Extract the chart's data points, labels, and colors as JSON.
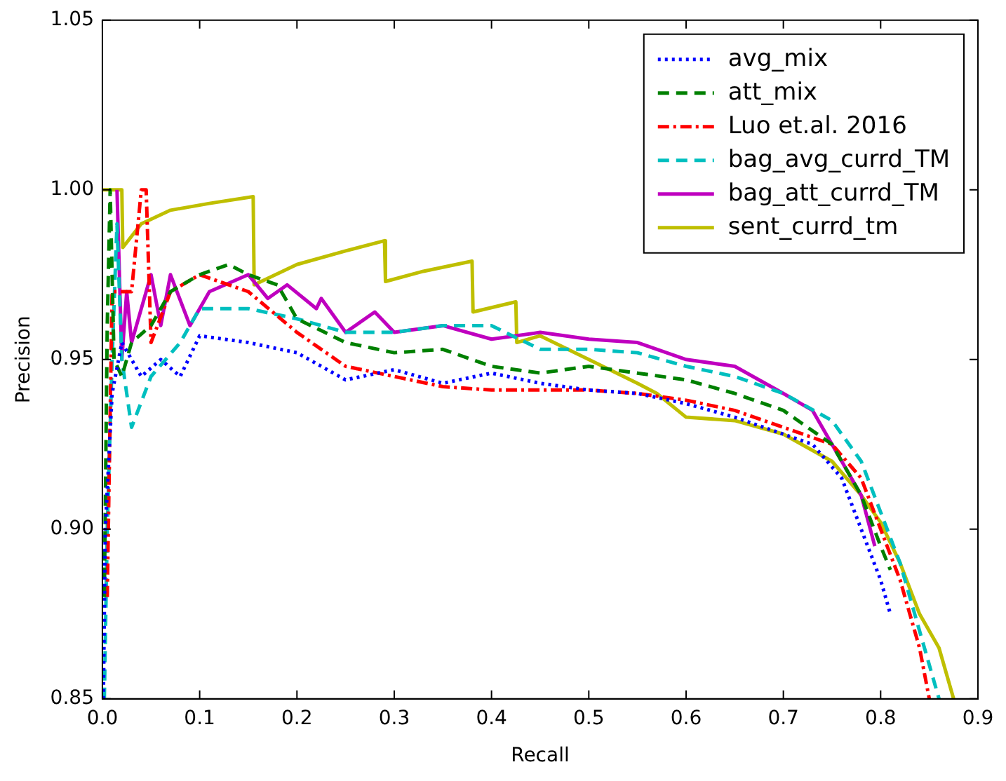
{
  "chart_data": {
    "type": "line",
    "xlabel": "Recall",
    "ylabel": "Precision",
    "legend": "top right",
    "grid": false,
    "marker": "none",
    "xlim": [
      0,
      0.9
    ],
    "ylim": [
      0.85,
      1.05
    ],
    "xticks": [
      {
        "value": 0,
        "label": "0.0"
      },
      {
        "value": 0.1,
        "label": "0.1"
      },
      {
        "value": 0.2,
        "label": "0.2"
      },
      {
        "value": 0.3,
        "label": "0.3"
      },
      {
        "value": 0.4,
        "label": "0.4"
      },
      {
        "value": 0.5,
        "label": "0.5"
      },
      {
        "value": 0.6,
        "label": "0.6"
      },
      {
        "value": 0.7,
        "label": "0.7"
      },
      {
        "value": 0.8,
        "label": "0.8"
      },
      {
        "value": 0.9,
        "label": "0.9"
      }
    ],
    "yticks": [
      {
        "value": 0.85,
        "label": "0.85"
      },
      {
        "value": 0.9,
        "label": "0.90"
      },
      {
        "value": 0.95,
        "label": "0.95"
      },
      {
        "value": 1.0,
        "label": "1.00"
      },
      {
        "value": 1.05,
        "label": "1.05"
      }
    ],
    "series": [
      {
        "name": "avg_mix",
        "color": "#0000ff",
        "line_style": "dotted",
        "x": [
          0.001,
          0.003,
          0.01,
          0.02,
          0.04,
          0.06,
          0.08,
          0.1,
          0.15,
          0.2,
          0.25,
          0.3,
          0.35,
          0.4,
          0.45,
          0.5,
          0.55,
          0.6,
          0.65,
          0.7,
          0.73,
          0.76,
          0.78,
          0.8,
          0.81
        ],
        "values": [
          0.85,
          0.9,
          0.94,
          0.955,
          0.945,
          0.95,
          0.945,
          0.957,
          0.955,
          0.952,
          0.944,
          0.947,
          0.943,
          0.946,
          0.943,
          0.941,
          0.94,
          0.937,
          0.933,
          0.928,
          0.925,
          0.915,
          0.9,
          0.885,
          0.875
        ]
      },
      {
        "name": "att_mix",
        "color": "#008000",
        "line_style": "dashed",
        "x": [
          0.002,
          0.005,
          0.008,
          0.012,
          0.02,
          0.03,
          0.05,
          0.07,
          0.1,
          0.13,
          0.15,
          0.18,
          0.2,
          0.25,
          0.3,
          0.35,
          0.4,
          0.45,
          0.5,
          0.55,
          0.6,
          0.65,
          0.7,
          0.75,
          0.78,
          0.8,
          0.81
        ],
        "values": [
          0.88,
          0.96,
          1.0,
          0.95,
          0.945,
          0.955,
          0.96,
          0.97,
          0.975,
          0.978,
          0.975,
          0.972,
          0.962,
          0.955,
          0.952,
          0.953,
          0.948,
          0.946,
          0.948,
          0.946,
          0.944,
          0.94,
          0.935,
          0.925,
          0.91,
          0.895,
          0.888
        ]
      },
      {
        "name": "Luo et.al. 2016",
        "color": "#ff0000",
        "line_style": "dashdot",
        "x": [
          0.005,
          0.01,
          0.02,
          0.03,
          0.04,
          0.045,
          0.05,
          0.07,
          0.1,
          0.15,
          0.2,
          0.25,
          0.3,
          0.35,
          0.4,
          0.5,
          0.55,
          0.6,
          0.65,
          0.7,
          0.75,
          0.78,
          0.8,
          0.82,
          0.84,
          0.85
        ],
        "values": [
          0.88,
          0.97,
          0.97,
          0.97,
          1.0,
          1.0,
          0.955,
          0.97,
          0.975,
          0.97,
          0.958,
          0.948,
          0.945,
          0.942,
          0.941,
          0.941,
          0.94,
          0.938,
          0.935,
          0.93,
          0.925,
          0.915,
          0.9,
          0.885,
          0.865,
          0.85
        ]
      },
      {
        "name": "bag_avg_currd_TM",
        "color": "#00bfbf",
        "line_style": "dashed",
        "x": [
          0.002,
          0.005,
          0.01,
          0.015,
          0.02,
          0.03,
          0.05,
          0.08,
          0.1,
          0.15,
          0.2,
          0.25,
          0.3,
          0.35,
          0.4,
          0.45,
          0.5,
          0.55,
          0.6,
          0.65,
          0.7,
          0.75,
          0.78,
          0.8,
          0.82,
          0.84,
          0.86
        ],
        "values": [
          0.85,
          0.9,
          0.95,
          0.99,
          0.95,
          0.93,
          0.945,
          0.955,
          0.965,
          0.965,
          0.962,
          0.958,
          0.958,
          0.96,
          0.96,
          0.953,
          0.953,
          0.952,
          0.948,
          0.945,
          0.94,
          0.932,
          0.92,
          0.905,
          0.89,
          0.87,
          0.85
        ]
      },
      {
        "name": "bag_att_currd_TM",
        "color": "#bf00bf",
        "line_style": "solid",
        "x": [
          0.015,
          0.02,
          0.025,
          0.03,
          0.05,
          0.06,
          0.07,
          0.09,
          0.11,
          0.15,
          0.17,
          0.19,
          0.22,
          0.225,
          0.25,
          0.28,
          0.3,
          0.35,
          0.4,
          0.45,
          0.5,
          0.55,
          0.6,
          0.65,
          0.7,
          0.73,
          0.76,
          0.78,
          0.794
        ],
        "values": [
          1.0,
          0.95,
          0.97,
          0.955,
          0.975,
          0.96,
          0.975,
          0.96,
          0.97,
          0.975,
          0.968,
          0.972,
          0.965,
          0.968,
          0.958,
          0.964,
          0.958,
          0.96,
          0.956,
          0.958,
          0.956,
          0.955,
          0.95,
          0.948,
          0.94,
          0.935,
          0.92,
          0.91,
          0.895
        ]
      },
      {
        "name": "sent_currd_tm",
        "color": "#bfbf00",
        "line_style": "solid",
        "x": [
          0,
          0.02,
          0.021,
          0.04,
          0.07,
          0.11,
          0.155,
          0.156,
          0.2,
          0.25,
          0.29,
          0.291,
          0.33,
          0.38,
          0.381,
          0.425,
          0.426,
          0.45,
          0.5,
          0.55,
          0.57,
          0.6,
          0.65,
          0.7,
          0.75,
          0.78,
          0.8,
          0.82,
          0.84,
          0.86,
          0.875
        ],
        "values": [
          1.0,
          1.0,
          0.983,
          0.99,
          0.994,
          0.996,
          0.998,
          0.972,
          0.978,
          0.982,
          0.985,
          0.973,
          0.976,
          0.979,
          0.964,
          0.967,
          0.955,
          0.957,
          0.95,
          0.943,
          0.94,
          0.933,
          0.932,
          0.928,
          0.92,
          0.91,
          0.902,
          0.89,
          0.875,
          0.865,
          0.85
        ]
      }
    ]
  }
}
